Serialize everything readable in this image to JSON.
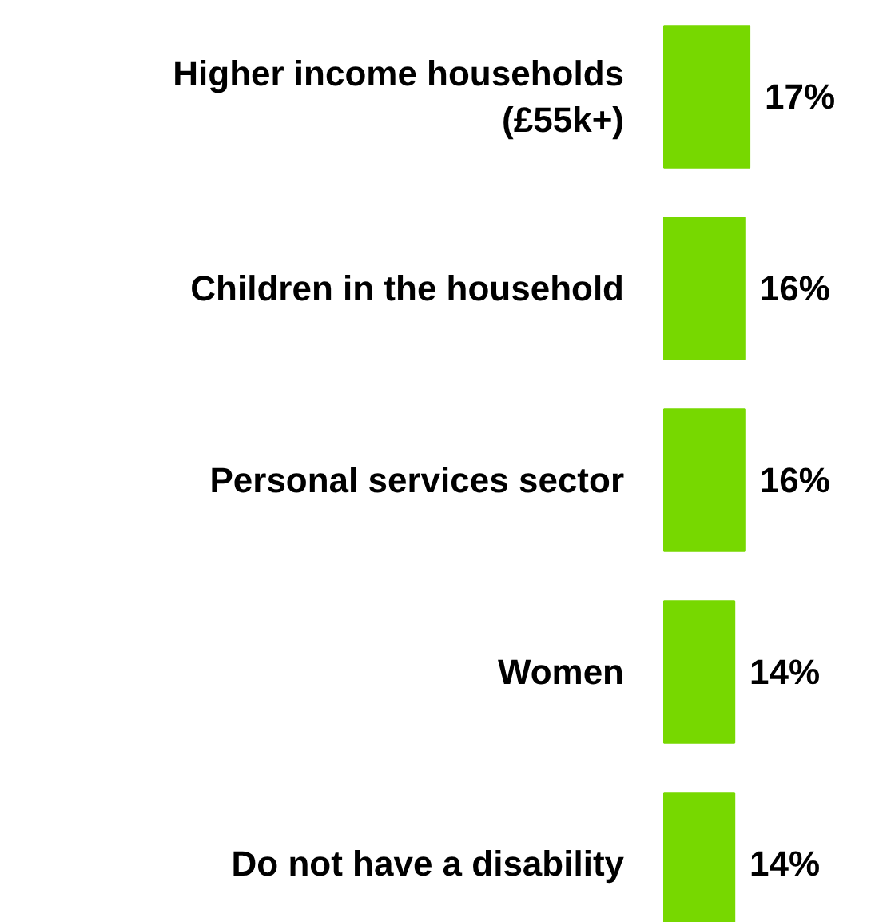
{
  "chart_data": {
    "type": "bar",
    "orientation": "horizontal",
    "categories": [
      "Higher income households (£55k+)",
      "Children in the household",
      "Personal services sector",
      "Women",
      "Do not have a disability"
    ],
    "values": [
      17,
      16,
      16,
      14,
      14
    ],
    "value_labels": [
      "17%",
      "16%",
      "16%",
      "14%",
      "14%"
    ],
    "color": "#77d800"
  }
}
